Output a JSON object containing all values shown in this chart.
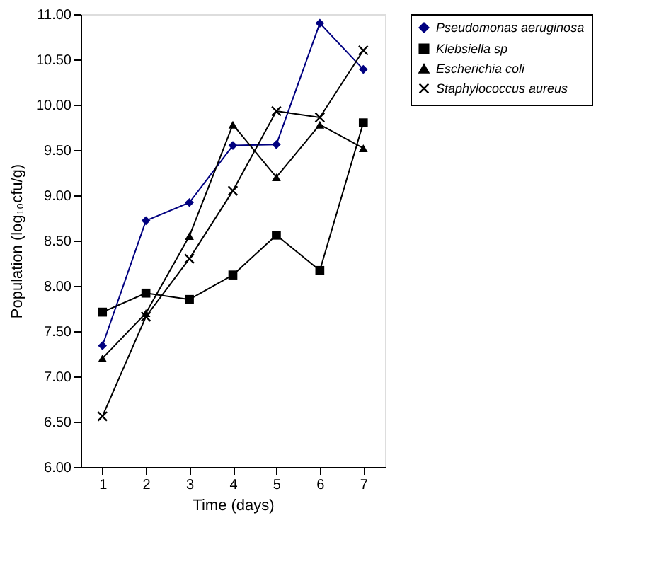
{
  "chart_data": {
    "type": "line",
    "xlabel": "Time (days)",
    "ylabel": "Population (log₁₀cfu/g)",
    "categories": [
      "1",
      "2",
      "3",
      "4",
      "5",
      "6",
      "7"
    ],
    "series": [
      {
        "name": "Pseudomonas aeruginosa",
        "color": "#000080",
        "marker": "diamond",
        "values": [
          7.34,
          8.72,
          8.92,
          9.55,
          9.56,
          10.9,
          10.39
        ]
      },
      {
        "name": "Klebsiella sp",
        "color": "#000000",
        "marker": "square",
        "values": [
          7.71,
          7.92,
          7.85,
          8.12,
          8.56,
          8.17,
          9.8
        ]
      },
      {
        "name": "Escherichia coli",
        "color": "#000000",
        "marker": "triangle",
        "values": [
          7.2,
          7.7,
          8.55,
          9.78,
          9.2,
          9.78,
          9.52
        ]
      },
      {
        "name": "Staphylococcus aureus",
        "color": "#000000",
        "marker": "cross",
        "values": [
          6.56,
          7.66,
          8.3,
          9.05,
          9.93,
          9.86,
          10.6
        ]
      }
    ],
    "ylim": [
      6.0,
      11.0
    ],
    "yticks": [
      {
        "value": 6.0,
        "label": "6.00"
      },
      {
        "value": 6.5,
        "label": "6.50"
      },
      {
        "value": 7.0,
        "label": "7.00"
      },
      {
        "value": 7.5,
        "label": "7.50"
      },
      {
        "value": 8.0,
        "label": "8.00"
      },
      {
        "value": 8.5,
        "label": "8.50"
      },
      {
        "value": 9.0,
        "label": "9.00"
      },
      {
        "value": 9.5,
        "label": "9.50"
      },
      {
        "value": 10.0,
        "label": "10.00"
      },
      {
        "value": 10.5,
        "label": "10.50"
      },
      {
        "value": 11.0,
        "label": "11.00"
      }
    ],
    "grid": false,
    "legend": "right",
    "line_style": "solid"
  }
}
